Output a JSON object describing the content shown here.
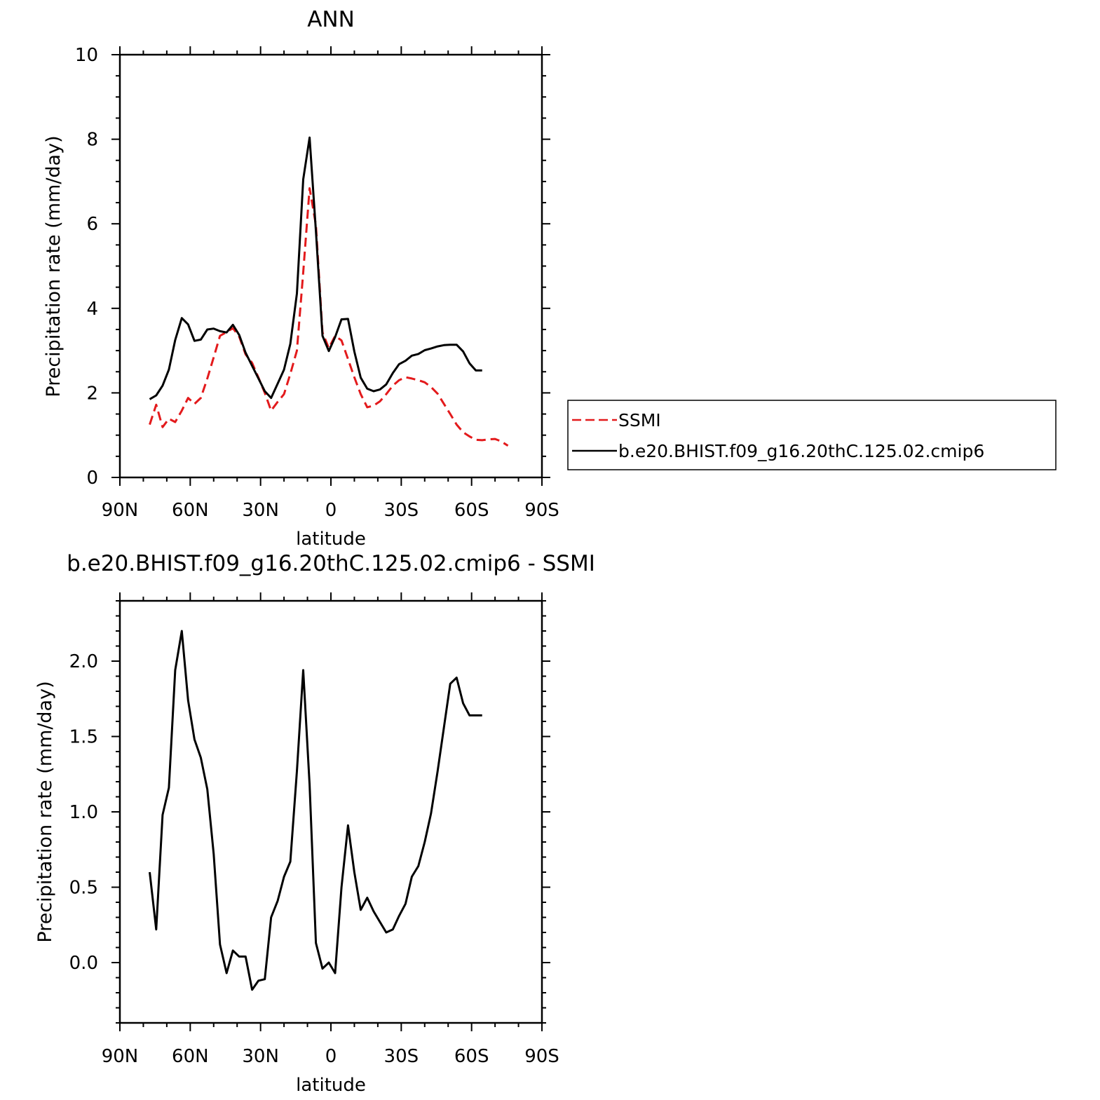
{
  "colors": {
    "ssmi": "#e31a1c",
    "model": "#000000",
    "axis": "#000000"
  },
  "chart_data": [
    {
      "type": "line",
      "title": "ANN",
      "xlabel": "latitude",
      "ylabel": "Precipitation rate (mm/day)",
      "xlim": [
        90,
        -90
      ],
      "ylim": [
        0,
        10
      ],
      "x_ticks": [
        90,
        60,
        30,
        0,
        -30,
        -60,
        -90
      ],
      "x_tick_labels": [
        "90N",
        "60N",
        "30N",
        "0",
        "30S",
        "60S",
        "90S"
      ],
      "y_ticks": [
        0,
        2,
        4,
        6,
        8,
        10
      ],
      "y_tick_labels": [
        "0",
        "2",
        "4",
        "6",
        "8",
        "10"
      ],
      "legend_placement": "right, outside the plot",
      "series": [
        {
          "name": "SSMI",
          "style": "dashed",
          "color": "#e31a1c",
          "x": [
            77.3,
            74.5,
            71.8,
            69.1,
            66.4,
            63.6,
            60.9,
            58.2,
            55.5,
            52.7,
            50.0,
            47.3,
            44.5,
            41.8,
            39.1,
            36.4,
            33.6,
            30.9,
            28.2,
            25.5,
            22.7,
            20.0,
            17.3,
            14.5,
            11.8,
            9.1,
            6.4,
            3.6,
            0.9,
            -1.8,
            -4.5,
            -7.3,
            -10.0,
            -12.7,
            -15.5,
            -18.2,
            -20.9,
            -23.6,
            -26.4,
            -29.1,
            -31.8,
            -34.5,
            -37.3,
            -40.0,
            -42.7,
            -45.5,
            -48.2,
            -50.9,
            -53.6,
            -56.4,
            -59.1,
            -61.8,
            -64.5,
            -67.3,
            -70.0,
            -72.7,
            -75.5
          ],
          "y": [
            1.25,
            1.72,
            1.19,
            1.39,
            1.31,
            1.58,
            1.88,
            1.74,
            1.88,
            2.34,
            2.84,
            3.35,
            3.44,
            3.53,
            3.33,
            2.91,
            2.71,
            2.36,
            2.0,
            1.58,
            1.79,
            1.97,
            2.45,
            3.0,
            4.85,
            6.84,
            5.97,
            3.43,
            3.06,
            3.35,
            3.24,
            2.8,
            2.37,
            1.97,
            1.66,
            1.7,
            1.8,
            1.97,
            2.17,
            2.3,
            2.37,
            2.34,
            2.3,
            2.25,
            2.14,
            1.98,
            1.74,
            1.5,
            1.25,
            1.07,
            0.97,
            0.89,
            0.88,
            0.9,
            0.91,
            0.85,
            0.75
          ]
        },
        {
          "name": "b.e20.BHIST.f09_g16.20thC.125.02.cmip6",
          "style": "solid",
          "color": "#000000",
          "x": [
            77.3,
            74.5,
            71.8,
            69.1,
            66.4,
            63.6,
            60.9,
            58.2,
            55.5,
            52.7,
            50.0,
            47.3,
            44.5,
            41.8,
            39.1,
            36.4,
            33.6,
            30.9,
            28.2,
            25.5,
            22.7,
            20.0,
            17.3,
            14.5,
            11.8,
            9.1,
            6.4,
            3.6,
            0.9,
            -1.8,
            -4.5,
            -7.3,
            -10.0,
            -12.7,
            -15.5,
            -18.2,
            -20.9,
            -23.6,
            -26.4,
            -29.1,
            -31.8,
            -34.5,
            -37.3,
            -40.0,
            -42.7,
            -45.5,
            -48.2,
            -50.9,
            -53.6,
            -56.4,
            -59.1,
            -61.8,
            -64.5
          ],
          "y": [
            1.85,
            1.94,
            2.17,
            2.55,
            3.25,
            3.77,
            3.62,
            3.23,
            3.26,
            3.5,
            3.52,
            3.46,
            3.43,
            3.61,
            3.37,
            2.95,
            2.64,
            2.34,
            2.04,
            1.88,
            2.22,
            2.55,
            3.16,
            4.35,
            7.05,
            8.04,
            5.83,
            3.35,
            2.99,
            3.32,
            3.74,
            3.75,
            2.98,
            2.36,
            2.1,
            2.04,
            2.08,
            2.2,
            2.47,
            2.68,
            2.76,
            2.88,
            2.92,
            3.01,
            3.05,
            3.1,
            3.13,
            3.14,
            3.14,
            2.98,
            2.7,
            2.53,
            2.53
          ]
        }
      ]
    },
    {
      "type": "line",
      "title": "b.e20.BHIST.f09_g16.20thC.125.02.cmip6 - SSMI",
      "xlabel": "latitude",
      "ylabel": "Precipitation rate (mm/day)",
      "xlim": [
        90,
        -90
      ],
      "ylim": [
        -0.4,
        2.4
      ],
      "x_ticks": [
        90,
        60,
        30,
        0,
        -30,
        -60,
        -90
      ],
      "x_tick_labels": [
        "90N",
        "60N",
        "30N",
        "0",
        "30S",
        "60S",
        "90S"
      ],
      "y_ticks": [
        0.0,
        0.5,
        1.0,
        1.5,
        2.0
      ],
      "y_tick_labels": [
        "0.0",
        "0.5",
        "1.0",
        "1.5",
        "2.0"
      ],
      "series": [
        {
          "style": "solid",
          "color": "#000000",
          "x": [
            77.3,
            74.5,
            71.8,
            69.1,
            66.4,
            63.6,
            60.9,
            58.2,
            55.5,
            52.7,
            50.0,
            47.3,
            44.5,
            41.8,
            39.1,
            36.4,
            33.6,
            30.9,
            28.2,
            25.5,
            22.7,
            20.0,
            17.3,
            14.5,
            11.8,
            9.1,
            6.4,
            3.6,
            0.9,
            -1.8,
            -4.5,
            -7.3,
            -10.0,
            -12.7,
            -15.5,
            -18.2,
            -20.9,
            -23.6,
            -26.4,
            -29.1,
            -31.8,
            -34.5,
            -37.3,
            -40.0,
            -42.7,
            -45.5,
            -48.2,
            -50.9,
            -53.6,
            -56.4,
            -59.1,
            -61.8,
            -64.5
          ],
          "y": [
            0.6,
            0.22,
            0.98,
            1.16,
            1.94,
            2.2,
            1.74,
            1.48,
            1.36,
            1.15,
            0.72,
            0.12,
            -0.07,
            0.08,
            0.04,
            0.04,
            -0.18,
            -0.12,
            -0.11,
            0.3,
            0.41,
            0.57,
            0.67,
            1.27,
            1.94,
            1.18,
            0.13,
            -0.04,
            0.0,
            -0.07,
            0.5,
            0.91,
            0.6,
            0.35,
            0.43,
            0.34,
            0.27,
            0.2,
            0.22,
            0.31,
            0.39,
            0.57,
            0.64,
            0.8,
            0.99,
            1.27,
            1.56,
            1.85,
            1.89,
            1.72,
            1.64,
            1.64,
            1.64
          ]
        }
      ]
    }
  ]
}
